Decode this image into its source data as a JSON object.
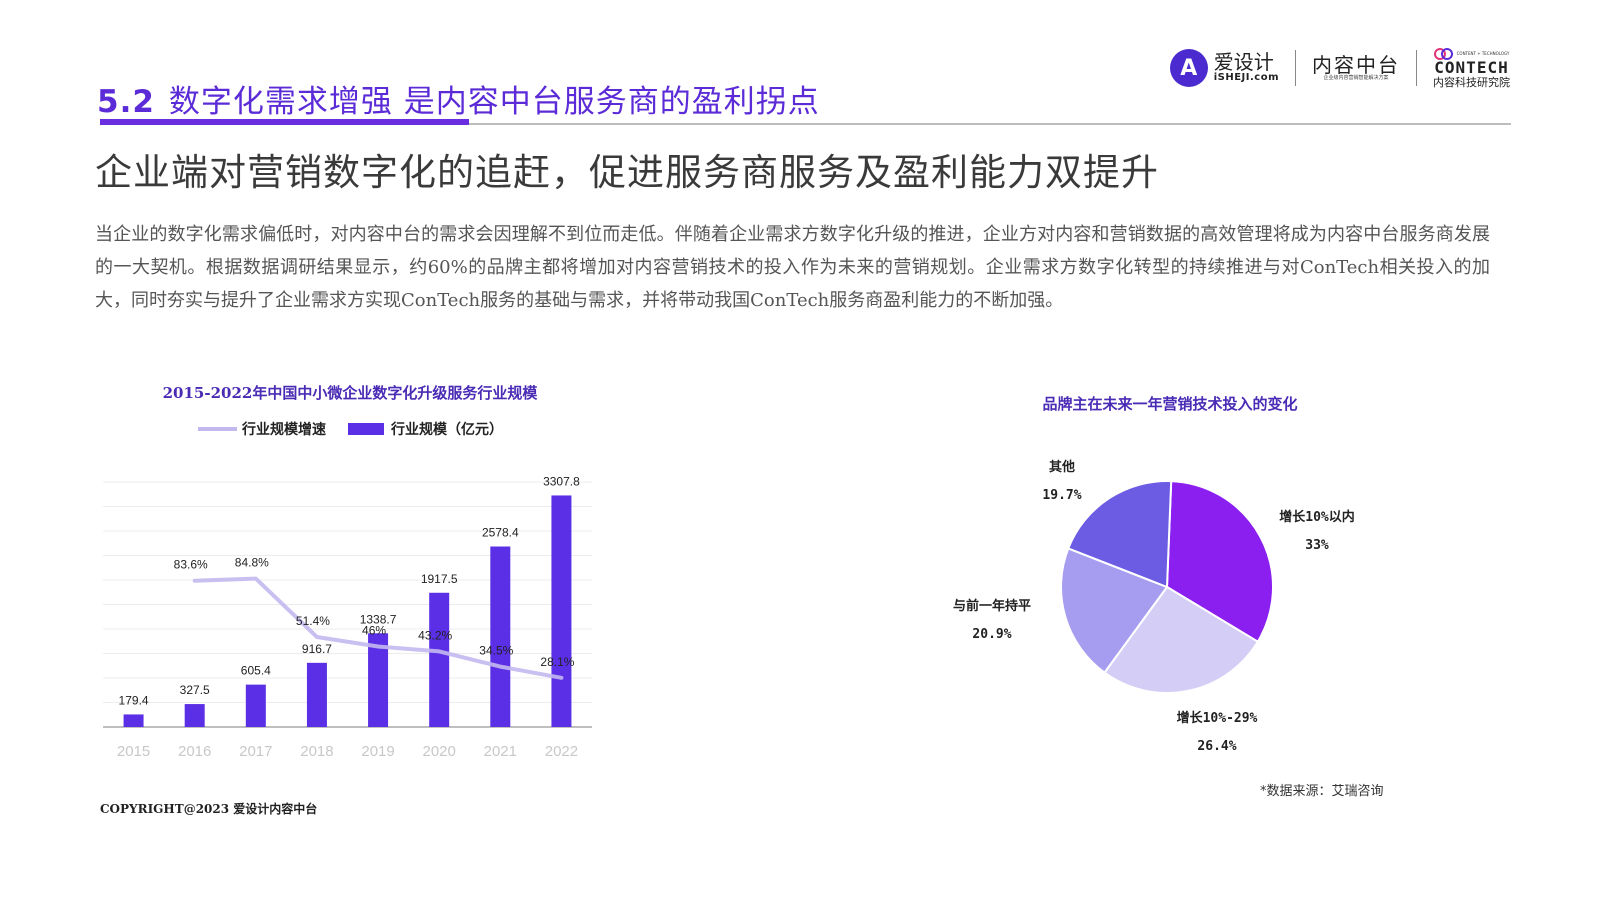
{
  "header": {
    "section_number": "5.2",
    "section_title": "数字化需求增强 是内容中台服务商的盈利拐点",
    "logos": {
      "ishejei_main": "爱设计",
      "ishejei_sub": "iSHEJI.com",
      "ishejei_glyph": "A",
      "neirong_main": "内容中台",
      "neirong_sub": "企业级内容营销智能解决方案",
      "contech_tiny": "CONTENT + TECHNOLOGY",
      "contech_main": "CONTECH",
      "contech_sub": "内容科技研究院"
    },
    "colors": {
      "accent": "#5b2bd8",
      "rule": "#bdbdbd"
    }
  },
  "headline": "企业端对营销数字化的追赶，促进服务商服务及盈利能力双提升",
  "paragraph": "当企业的数字化需求偏低时，对内容中台的需求会因理解不到位而走低。伴随着企业需求方数字化升级的推进，企业方对内容和营销数据的高效管理将成为内容中台服务商发展的一大契机。根据数据调研结果显示，约60%的品牌主都将增加对内容营销技术的投入作为未来的营销规划。企业需求方数字化转型的持续推进与对ConTech相关投入的加大，同时夯实与提升了企业需求方实现ConTech服务的基础与需求，并将带动我国ConTech服务商盈利能力的不断加强。",
  "chart_data": [
    {
      "type": "bar",
      "title": "2015-2022年中国中小微企业数字化升级服务行业规模",
      "legend": [
        "行业规模增速",
        "行业规模（亿元）"
      ],
      "legend_placement": "top",
      "categories": [
        "2015",
        "2016",
        "2017",
        "2018",
        "2019",
        "2020",
        "2021",
        "2022"
      ],
      "series": [
        {
          "name": "行业规模（亿元）",
          "kind": "bar",
          "color": "#5b2fe6",
          "values": [
            179.4,
            327.5,
            605.4,
            916.7,
            1338.7,
            1917.5,
            2578.4,
            3307.8
          ],
          "labels": [
            "179.4",
            "327.5",
            "605.4",
            "916.7",
            "1338.7",
            "1917.5",
            "2578.4",
            "3307.8"
          ]
        },
        {
          "name": "行业规模增速",
          "kind": "line",
          "color": "#c3b9ef",
          "x": [
            "2016",
            "2017",
            "2018",
            "2019",
            "2020",
            "2021",
            "2022"
          ],
          "values": [
            83.6,
            84.8,
            51.4,
            46,
            43.2,
            34.5,
            28.1
          ],
          "labels": [
            "83.6%",
            "84.8%",
            "51.4%",
            "46%",
            "43.2%",
            "34.5%",
            "28.1%"
          ]
        }
      ],
      "ylim": [
        0,
        3500
      ],
      "y2lim": [
        0,
        140
      ],
      "grid": true
    },
    {
      "type": "pie",
      "title": "品牌主在未来一年营销技术投入的变化",
      "slices": [
        {
          "label": "增长10%以内",
          "value": 33,
          "value_label": "33%",
          "color": "#8a1ff0"
        },
        {
          "label": "增长10%-29%",
          "value": 26.4,
          "value_label": "26.4%",
          "color": "#d4cdf5"
        },
        {
          "label": "与前一年持平",
          "value": 20.9,
          "value_label": "20.9%",
          "color": "#a79df0"
        },
        {
          "label": "其他",
          "value": 19.7,
          "value_label": "19.7%",
          "color": "#6c5ce4"
        }
      ]
    }
  ],
  "source": "*数据来源：艾瑞咨询",
  "copyright": "COPYRIGHT@2023 爱设计内容中台"
}
